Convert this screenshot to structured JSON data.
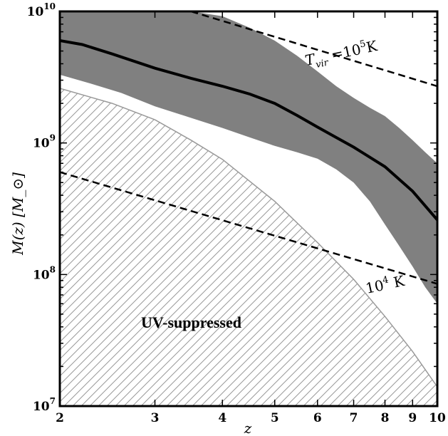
{
  "chart_data": {
    "type": "line",
    "xlabel": "z",
    "ylabel": "M(z) [M_⊙]",
    "xscale": "log",
    "yscale": "log",
    "xlim": [
      2,
      10
    ],
    "ylim": [
      10000000.0,
      10000000000.0
    ],
    "x_ticks": [
      2,
      3,
      4,
      5,
      6,
      7,
      8,
      9,
      10
    ],
    "y_ticks": [
      10000000.0,
      100000000.0,
      1000000000.0,
      10000000000.0
    ],
    "y_tick_labels": [
      {
        "base": "10",
        "exp": "7"
      },
      {
        "base": "10",
        "exp": "8"
      },
      {
        "base": "10",
        "exp": "9"
      },
      {
        "base": "10",
        "exp": "10"
      }
    ],
    "series": [
      {
        "role": "median-line",
        "style": "solid-thick",
        "color": "#000000",
        "x": [
          2.0,
          2.2,
          2.5,
          3.0,
          3.5,
          4.0,
          4.5,
          5.0,
          5.5,
          6.0,
          6.5,
          7.0,
          8.0,
          9.0,
          10.0
        ],
        "y": [
          6000000000.0,
          5600000000.0,
          4750000000.0,
          3700000000.0,
          3100000000.0,
          2700000000.0,
          2350000000.0,
          2000000000.0,
          1620000000.0,
          1320000000.0,
          1100000000.0,
          930000000.0,
          660000000.0,
          430000000.0,
          260000000.0
        ]
      },
      {
        "role": "scatter-band",
        "style": "filled",
        "color": "#808080",
        "x": [
          2.0,
          2.3,
          2.6,
          3.0,
          3.5,
          4.0,
          4.5,
          5.0,
          5.5,
          6.0,
          6.5,
          7.0,
          7.5,
          8.0,
          8.5,
          9.0,
          9.5,
          10.0
        ],
        "upper": [
          10000000000.0,
          10000000000.0,
          10000000000.0,
          10000000000.0,
          10000000000.0,
          9200000000.0,
          7500000000.0,
          6000000000.0,
          4600000000.0,
          3500000000.0,
          2700000000.0,
          2200000000.0,
          1850000000.0,
          1600000000.0,
          1300000000.0,
          1050000000.0,
          850000000.0,
          700000000.0
        ],
        "lower": [
          3300000000.0,
          2800000000.0,
          2400000000.0,
          1900000000.0,
          1550000000.0,
          1300000000.0,
          1100000000.0,
          950000000.0,
          850000000.0,
          760000000.0,
          630000000.0,
          500000000.0,
          360000000.0,
          240000000.0,
          165000000.0,
          115000000.0,
          80000000.0,
          60000000.0
        ]
      },
      {
        "role": "Tvir-1e5K",
        "style": "dashed",
        "color": "#000000",
        "x": [
          3.5,
          10.0
        ],
        "y": [
          10000000000.0,
          2700000000.0
        ]
      },
      {
        "role": "Tvir-1e4K",
        "style": "dashed",
        "color": "#000000",
        "x": [
          2.0,
          10.0
        ],
        "y": [
          600000000.0,
          85000000.0
        ]
      },
      {
        "role": "uv-suppressed-boundary",
        "style": "hatched",
        "color": "#999999",
        "x": [
          2.0,
          2.5,
          3.0,
          3.5,
          4.0,
          5.0,
          6.0,
          7.0,
          8.0,
          9.0,
          10.0
        ],
        "y": [
          2600000000.0,
          2000000000.0,
          1500000000.0,
          1050000000.0,
          750000000.0,
          360000000.0,
          175000000.0,
          92000000.0,
          48000000.0,
          26000000.0,
          14000000.0
        ]
      }
    ],
    "annotations": {
      "tvir_high": {
        "T": "T",
        "sub": "vir",
        "eq": " =10",
        "exp": "5",
        "unit": "K"
      },
      "tvir_low": {
        "base": "10",
        "exp": "4",
        "unit": " K"
      },
      "region": "UV-suppressed"
    },
    "grid": false,
    "legend": "none"
  }
}
